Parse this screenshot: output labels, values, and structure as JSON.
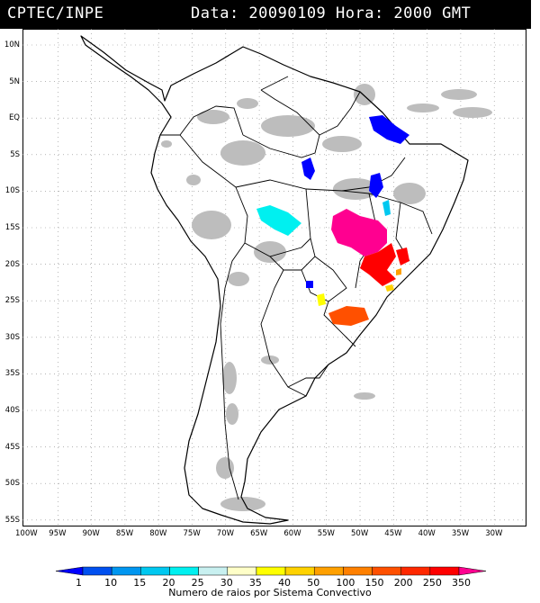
{
  "header": {
    "source": "CPTEC/INPE",
    "datetime": "Data: 20090109 Hora: 2000 GMT"
  },
  "latitudes": [
    "10N",
    "5N",
    "EQ",
    "5S",
    "10S",
    "15S",
    "20S",
    "25S",
    "30S",
    "35S",
    "40S",
    "45S",
    "50S",
    "55S"
  ],
  "longitudes": [
    "100W",
    "95W",
    "90W",
    "85W",
    "80W",
    "75W",
    "70W",
    "65W",
    "60W",
    "55W",
    "50W",
    "45W",
    "40W",
    "35W",
    "30W"
  ],
  "scale": {
    "ticks": [
      "1",
      "10",
      "15",
      "20",
      "25",
      "30",
      "35",
      "40",
      "50",
      "100",
      "150",
      "200",
      "250",
      "350"
    ],
    "colors": [
      "#0000ff",
      "#0050f0",
      "#0096f0",
      "#00c8f0",
      "#00f0f0",
      "#c8f0f0",
      "#ffffc8",
      "#ffff00",
      "#ffd200",
      "#ffa000",
      "#ff8000",
      "#ff5000",
      "#ff2800",
      "#ff0000",
      "#ff0090"
    ],
    "caption": "Numero de raios por Sistema Convectivo"
  },
  "colors": {
    "header_bg": "#000000",
    "header_text": "#ffffff",
    "clouds": "#bdbdbd"
  }
}
